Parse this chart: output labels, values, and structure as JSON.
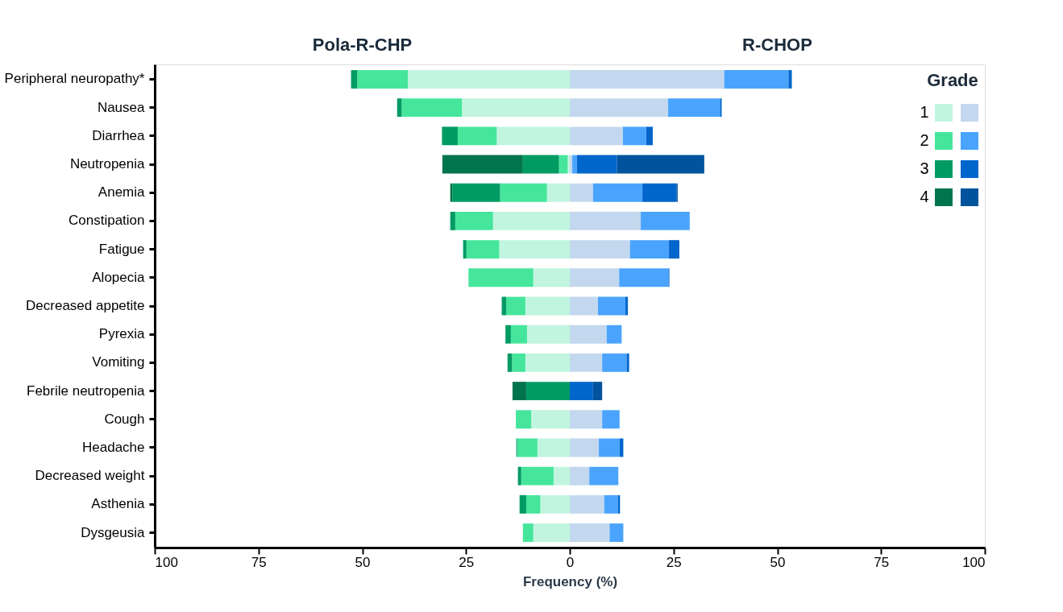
{
  "chart_data": {
    "type": "bar",
    "orientation": "horizontal",
    "stacked": true,
    "xlabel": "Frequency (%)",
    "legend_title": "Grade",
    "legend": "top right",
    "grid": false,
    "annotations": [
      "Pola-R-CHP",
      "R-CHOP"
    ],
    "categories": [
      "Peripheral neuropathy*",
      "Nausea",
      "Diarrhea",
      "Neutropenia",
      "Anemia",
      "Constipation",
      "Fatigue",
      "Alopecia",
      "Decreased appetite",
      "Pyrexia",
      "Vomiting",
      "Febrile neutropenia",
      "Cough",
      "Headache",
      "Decreased weight",
      "Asthenia",
      "Dysgeusia"
    ],
    "xlim": [
      -100,
      100
    ],
    "xticks": [
      {
        "value": -100,
        "label": "100"
      },
      {
        "value": -75,
        "label": "75"
      },
      {
        "value": -50,
        "label": "50"
      },
      {
        "value": -25,
        "label": "25"
      },
      0,
      25,
      50,
      75,
      100
    ],
    "series": [
      {
        "name": "1",
        "color": "#c1f5df",
        "values": [
          -39.0,
          -26.0,
          -17.6,
          -0.5,
          -5.5,
          -18.5,
          -17.0,
          -8.8,
          -10.7,
          -10.3,
          -10.7,
          null,
          -9.3,
          -7.8,
          -3.9,
          -7.1,
          -8.8
        ]
      },
      {
        "name": "2",
        "color": "#45e69b",
        "values": [
          -12.2,
          -14.5,
          -9.4,
          -2.1,
          -11.3,
          -9.1,
          -7.9,
          -15.6,
          -4.6,
          -3.9,
          -3.2,
          null,
          -3.7,
          -4.9,
          -7.8,
          -3.4,
          -2.5
        ]
      },
      {
        "name": "3",
        "color": "#009b63",
        "values": [
          -1.5,
          -1.1,
          -3.8,
          -8.7,
          -11.5,
          -1.2,
          -0.8,
          null,
          -1.1,
          -1.3,
          -1.1,
          -10.5,
          null,
          -0.2,
          -0.8,
          -1.6,
          null
        ]
      },
      {
        "name": "4",
        "color": "#00744c",
        "values": [
          null,
          null,
          null,
          -19.4,
          -0.5,
          null,
          null,
          null,
          null,
          null,
          null,
          -3.3,
          null,
          null,
          null,
          null,
          null
        ]
      },
      {
        "color": "#c3d8ee",
        "values": [
          37.2,
          23.7,
          12.8,
          0.6,
          5.6,
          17.1,
          14.5,
          11.9,
          6.8,
          8.9,
          7.8,
          null,
          7.8,
          7.0,
          4.7,
          8.3,
          9.6
        ]
      },
      {
        "color": "#4aa4fe",
        "values": [
          15.5,
          12.5,
          5.6,
          1.1,
          11.9,
          11.8,
          9.4,
          11.9,
          6.6,
          3.6,
          5.9,
          null,
          4.2,
          5.0,
          7.0,
          3.3,
          3.3
        ]
      },
      {
        "color": "#0066cc",
        "values": [
          0.8,
          0.4,
          1.6,
          9.7,
          8.2,
          null,
          2.5,
          0.2,
          0.6,
          null,
          0.6,
          5.6,
          null,
          0.9,
          null,
          0.5,
          null
        ]
      },
      {
        "color": "#00539c",
        "values": [
          null,
          null,
          null,
          21.0,
          0.3,
          null,
          null,
          null,
          null,
          null,
          null,
          2.2,
          null,
          null,
          null,
          null,
          null
        ]
      }
    ]
  }
}
